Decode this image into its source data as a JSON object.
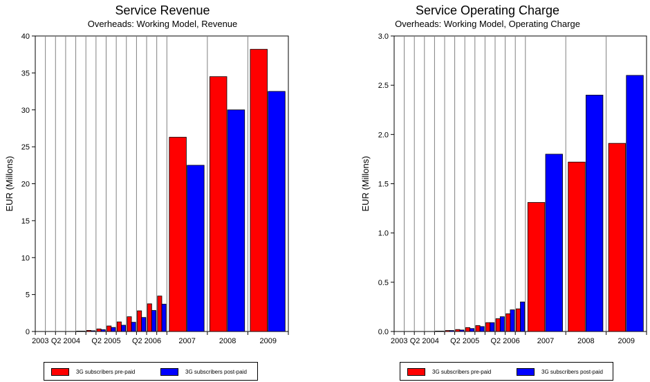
{
  "chart_data": [
    {
      "type": "bar",
      "title": "Service Revenue",
      "subtitle": "Overheads: Working Model, Revenue",
      "ylabel": "EUR  (Millons)",
      "xlabel": "",
      "ylim": [
        0,
        40
      ],
      "yticks": [
        0,
        5,
        10,
        15,
        20,
        25,
        30,
        35,
        40
      ],
      "ytick_labels": [
        "0",
        "5",
        "10",
        "15",
        "20",
        "25",
        "30",
        "35",
        "40"
      ],
      "categories": [
        "2003",
        "Q1 2004",
        "Q2 2004",
        "Q3 2004",
        "Q4 2004",
        "Q1 2005",
        "Q2 2005",
        "Q3 2005",
        "Q4 2005",
        "Q1 2006",
        "Q2 2006",
        "Q3 2006",
        "Q4 2006",
        "2007",
        "2008",
        "2009"
      ],
      "category_labels": [
        "2003",
        "",
        "Q2 2004",
        "",
        "",
        "",
        "Q2 2005",
        "",
        "",
        "",
        "Q2 2006",
        "",
        "",
        "2007",
        "2008",
        "2009"
      ],
      "series": [
        {
          "name": "3G subscribers pre-paid",
          "color": "#ff0000",
          "values": [
            0,
            0,
            0,
            0,
            0.05,
            0.15,
            0.35,
            0.75,
            1.3,
            2.0,
            2.8,
            3.75,
            4.8,
            26.3,
            34.5,
            38.2
          ]
        },
        {
          "name": "3G subscribers post-paid",
          "color": "#0000ff",
          "values": [
            0,
            0,
            0,
            0,
            0.03,
            0.1,
            0.25,
            0.55,
            0.85,
            1.25,
            1.9,
            2.85,
            3.7,
            22.5,
            30.0,
            32.5
          ]
        }
      ],
      "legend": {
        "position": "bottom"
      },
      "grid": {
        "x": true,
        "y": false
      }
    },
    {
      "type": "bar",
      "title": "Service Operating Charge",
      "subtitle": "Overheads: Working Model, Operating Charge",
      "ylabel": "EUR  (Millons)",
      "xlabel": "",
      "ylim": [
        0,
        3.0
      ],
      "yticks": [
        0,
        0.5,
        1.0,
        1.5,
        2.0,
        2.5,
        3.0
      ],
      "ytick_labels": [
        "0.0",
        "0.5",
        "1.0",
        "1.5",
        "2.0",
        "2.5",
        "3.0"
      ],
      "categories": [
        "2003",
        "Q1 2004",
        "Q2 2004",
        "Q3 2004",
        "Q4 2004",
        "Q1 2005",
        "Q2 2005",
        "Q3 2005",
        "Q4 2005",
        "Q1 2006",
        "Q2 2006",
        "Q3 2006",
        "Q4 2006",
        "2007",
        "2008",
        "2009"
      ],
      "category_labels": [
        "2003",
        "",
        "Q2 2004",
        "",
        "",
        "",
        "Q2 2005",
        "",
        "",
        "",
        "Q2 2006",
        "",
        "",
        "2007",
        "2008",
        "2009"
      ],
      "series": [
        {
          "name": "3G subscribers pre-paid",
          "color": "#ff0000",
          "values": [
            0,
            0,
            0,
            0,
            0.003,
            0.01,
            0.02,
            0.04,
            0.06,
            0.09,
            0.13,
            0.18,
            0.23,
            1.31,
            1.72,
            1.91
          ]
        },
        {
          "name": "3G subscribers post-paid",
          "color": "#0000ff",
          "values": [
            0,
            0,
            0,
            0,
            0.003,
            0.01,
            0.015,
            0.03,
            0.05,
            0.09,
            0.15,
            0.22,
            0.3,
            1.8,
            2.4,
            2.6
          ]
        }
      ],
      "legend": {
        "position": "bottom"
      },
      "grid": {
        "x": true,
        "y": false
      }
    }
  ]
}
